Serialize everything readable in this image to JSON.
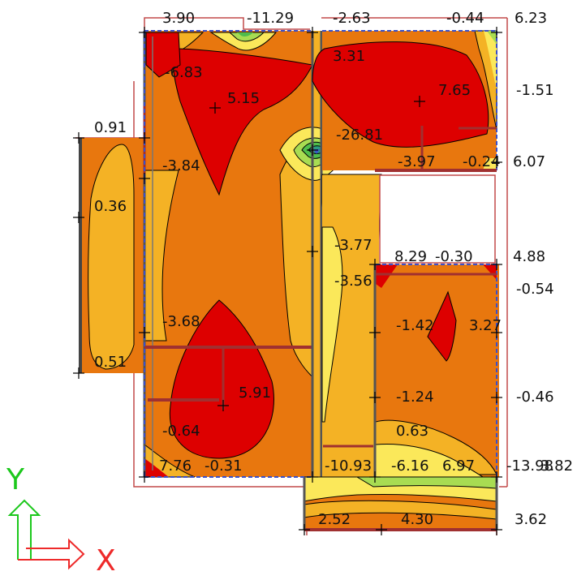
{
  "colors": {
    "deep_red": "#dd0000",
    "orange": "#e8770e",
    "light_orange": "#f4b225",
    "yellow": "#fbe85a",
    "light_green": "#a8dc52",
    "green": "#4fbd4c",
    "teal": "#2a9c80",
    "blue": "#3a50c8",
    "wall": "#444444",
    "outline": "#c24a4a",
    "axis_y": "#1cc81c",
    "axis_x": "#ee2a2a"
  },
  "labels": [
    {
      "id": "l01",
      "text": "3.90"
    },
    {
      "id": "l02",
      "text": "-11.29"
    },
    {
      "id": "l03",
      "text": "-2.63"
    },
    {
      "id": "l04",
      "text": "-0.44"
    },
    {
      "id": "l05",
      "text": "6.23"
    },
    {
      "id": "l06",
      "text": "-6.83"
    },
    {
      "id": "l07",
      "text": "3.31"
    },
    {
      "id": "l08",
      "text": "5.15"
    },
    {
      "id": "l09",
      "text": "7.65"
    },
    {
      "id": "l10",
      "text": "-1.51"
    },
    {
      "id": "l11",
      "text": "0.91"
    },
    {
      "id": "l12",
      "text": "-26.81"
    },
    {
      "id": "l13",
      "text": "-3.84"
    },
    {
      "id": "l14",
      "text": "-3.97"
    },
    {
      "id": "l15",
      "text": "-0.24"
    },
    {
      "id": "l16",
      "text": "6.07"
    },
    {
      "id": "l17",
      "text": "0.36"
    },
    {
      "id": "l18",
      "text": "-3.77"
    },
    {
      "id": "l19",
      "text": "8.29"
    },
    {
      "id": "l20",
      "text": "-0.30"
    },
    {
      "id": "l21",
      "text": "4.88"
    },
    {
      "id": "l22",
      "text": "-3.56"
    },
    {
      "id": "l23",
      "text": "-0.54"
    },
    {
      "id": "l24",
      "text": "-3.68"
    },
    {
      "id": "l25",
      "text": "-1.42"
    },
    {
      "id": "l26",
      "text": "3.27"
    },
    {
      "id": "l27",
      "text": "0.51"
    },
    {
      "id": "l28",
      "text": "5.91"
    },
    {
      "id": "l29",
      "text": "-1.24"
    },
    {
      "id": "l30",
      "text": "-0.46"
    },
    {
      "id": "l31",
      "text": "-0.64"
    },
    {
      "id": "l32",
      "text": "0.63"
    },
    {
      "id": "l33",
      "text": "7.76"
    },
    {
      "id": "l34",
      "text": "-0.31"
    },
    {
      "id": "l35",
      "text": "-10.93"
    },
    {
      "id": "l36",
      "text": "-6.16"
    },
    {
      "id": "l37",
      "text": "6.97"
    },
    {
      "id": "l38",
      "text": "-13.98"
    },
    {
      "id": "l39",
      "text": "3.82"
    },
    {
      "id": "l40",
      "text": "2.52"
    },
    {
      "id": "l41",
      "text": "4.30"
    },
    {
      "id": "l42",
      "text": "3.62"
    }
  ],
  "axes": {
    "y_label": "Y",
    "x_label": "X"
  }
}
